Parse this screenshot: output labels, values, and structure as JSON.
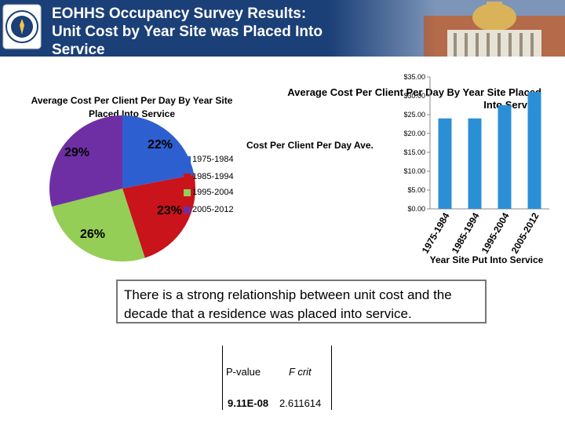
{
  "header": {
    "title": "EOHHS Occupancy Survey Results:\nUnit Cost by Year Site was Placed Into\nService"
  },
  "colors": {
    "header_bg": "#1b3f77",
    "slices": [
      "#2e5fd0",
      "#c8141a",
      "#94ce56",
      "#6f2fa4"
    ],
    "bars": "#2b8fd6"
  },
  "chart_data": [
    {
      "type": "pie",
      "title": "Average Cost Per Client Per Day By Year Site Placed Into Service",
      "labels": [
        "1975-1984",
        "1985-1994",
        "1995-2004",
        "2005-2012"
      ],
      "values": [
        22,
        23,
        26,
        29
      ],
      "value_labels": [
        "22%",
        "23%",
        "26%",
        "29%"
      ],
      "legend": "right"
    },
    {
      "type": "bar",
      "title": "Average Cost Per Client Per Day By Year Site Placed Into Service",
      "ylabel": "Cost Per Client Per Day Ave.",
      "xlabel": "Year Site Put Into Service",
      "categories": [
        "1975-1984",
        "1985-1994",
        "1995-2004",
        "2005-2012"
      ],
      "values": [
        24,
        24,
        27.5,
        31
      ],
      "ylim": [
        0,
        35
      ],
      "yticks": [
        "$0.00",
        "$5.00",
        "$10.00",
        "$15.00",
        "$20.00",
        "$25.00",
        "$30.00",
        "$35.00"
      ],
      "grid": false
    }
  ],
  "note": "There is a strong relationship between unit cost and the decade that a residence was placed into service.",
  "stats": {
    "pvalue_header": "P-value",
    "fcrit_header": "F crit",
    "pvalue": "9.11E-08",
    "fcrit": "2.611614"
  }
}
